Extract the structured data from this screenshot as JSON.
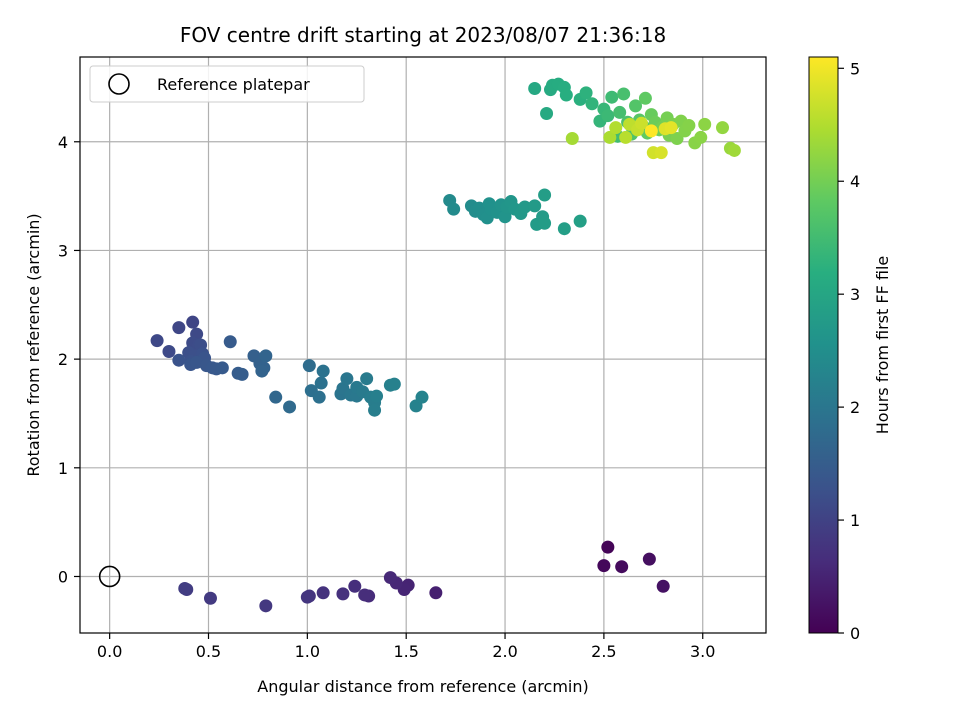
{
  "chart_data": {
    "type": "scatter",
    "title": "FOV centre drift starting at 2023/08/07 21:36:18",
    "xlabel": "Angular distance from reference (arcmin)",
    "ylabel": "Rotation from reference (arcmin)",
    "xlim": [
      -0.15,
      3.32
    ],
    "ylim": [
      -0.52,
      4.78
    ],
    "xticks": [
      "0.0",
      "0.5",
      "1.0",
      "1.5",
      "2.0",
      "2.5",
      "3.0"
    ],
    "yticks": [
      "0",
      "1",
      "2",
      "3",
      "4"
    ],
    "grid": true,
    "legend": {
      "placement": "top-left",
      "entries": [
        "Reference platepar"
      ]
    },
    "reference_point": {
      "x": 0.0,
      "y": 0.0
    },
    "colorbar": {
      "label": "Hours from first FF file",
      "range": [
        0,
        5.1
      ],
      "ticks": [
        "0",
        "1",
        "2",
        "3",
        "4",
        "5"
      ],
      "colormap": "viridis"
    },
    "points": [
      {
        "x": 2.52,
        "y": 0.27,
        "c": 0.05
      },
      {
        "x": 2.5,
        "y": 0.1,
        "c": 0.1
      },
      {
        "x": 2.59,
        "y": 0.09,
        "c": 0.15
      },
      {
        "x": 2.73,
        "y": 0.16,
        "c": 0.2
      },
      {
        "x": 2.8,
        "y": -0.09,
        "c": 0.25
      },
      {
        "x": 1.65,
        "y": -0.15,
        "c": 0.45
      },
      {
        "x": 1.51,
        "y": -0.08,
        "c": 0.5
      },
      {
        "x": 1.49,
        "y": -0.12,
        "c": 0.52
      },
      {
        "x": 1.45,
        "y": -0.06,
        "c": 0.55
      },
      {
        "x": 1.42,
        "y": -0.01,
        "c": 0.58
      },
      {
        "x": 1.31,
        "y": -0.18,
        "c": 0.62
      },
      {
        "x": 1.29,
        "y": -0.17,
        "c": 0.65
      },
      {
        "x": 1.24,
        "y": -0.09,
        "c": 0.68
      },
      {
        "x": 1.18,
        "y": -0.16,
        "c": 0.7
      },
      {
        "x": 1.08,
        "y": -0.15,
        "c": 0.73
      },
      {
        "x": 1.01,
        "y": -0.18,
        "c": 0.76
      },
      {
        "x": 1.0,
        "y": -0.19,
        "c": 0.78
      },
      {
        "x": 0.79,
        "y": -0.27,
        "c": 0.82
      },
      {
        "x": 0.51,
        "y": -0.2,
        "c": 0.86
      },
      {
        "x": 0.39,
        "y": -0.12,
        "c": 0.9
      },
      {
        "x": 0.38,
        "y": -0.11,
        "c": 0.92
      },
      {
        "x": 0.42,
        "y": 2.34,
        "c": 1.05
      },
      {
        "x": 0.35,
        "y": 2.29,
        "c": 1.08
      },
      {
        "x": 0.24,
        "y": 2.17,
        "c": 1.1
      },
      {
        "x": 0.44,
        "y": 2.23,
        "c": 1.12
      },
      {
        "x": 0.3,
        "y": 2.07,
        "c": 1.14
      },
      {
        "x": 0.42,
        "y": 2.15,
        "c": 1.16
      },
      {
        "x": 0.45,
        "y": 2.13,
        "c": 1.18
      },
      {
        "x": 0.46,
        "y": 2.13,
        "c": 1.2
      },
      {
        "x": 0.4,
        "y": 2.06,
        "c": 1.22
      },
      {
        "x": 0.43,
        "y": 2.03,
        "c": 1.24
      },
      {
        "x": 0.47,
        "y": 2.05,
        "c": 1.26
      },
      {
        "x": 0.41,
        "y": 1.98,
        "c": 1.28
      },
      {
        "x": 0.35,
        "y": 1.99,
        "c": 1.3
      },
      {
        "x": 0.48,
        "y": 2.01,
        "c": 1.32
      },
      {
        "x": 0.41,
        "y": 1.95,
        "c": 1.34
      },
      {
        "x": 0.44,
        "y": 1.97,
        "c": 1.36
      },
      {
        "x": 0.49,
        "y": 1.94,
        "c": 1.38
      },
      {
        "x": 0.52,
        "y": 1.92,
        "c": 1.4
      },
      {
        "x": 0.54,
        "y": 1.91,
        "c": 1.42
      },
      {
        "x": 0.57,
        "y": 1.92,
        "c": 1.44
      },
      {
        "x": 0.61,
        "y": 2.16,
        "c": 1.46
      },
      {
        "x": 0.65,
        "y": 1.87,
        "c": 1.48
      },
      {
        "x": 0.67,
        "y": 1.86,
        "c": 1.5
      },
      {
        "x": 0.73,
        "y": 2.03,
        "c": 1.55
      },
      {
        "x": 0.76,
        "y": 1.96,
        "c": 1.58
      },
      {
        "x": 0.78,
        "y": 1.92,
        "c": 1.6
      },
      {
        "x": 0.77,
        "y": 1.89,
        "c": 1.62
      },
      {
        "x": 0.79,
        "y": 2.03,
        "c": 1.64
      },
      {
        "x": 0.84,
        "y": 1.65,
        "c": 1.7
      },
      {
        "x": 0.91,
        "y": 1.56,
        "c": 1.75
      },
      {
        "x": 1.01,
        "y": 1.94,
        "c": 1.8
      },
      {
        "x": 1.02,
        "y": 1.71,
        "c": 1.85
      },
      {
        "x": 1.06,
        "y": 1.65,
        "c": 1.88
      },
      {
        "x": 1.07,
        "y": 1.78,
        "c": 1.9
      },
      {
        "x": 1.08,
        "y": 1.89,
        "c": 1.92
      },
      {
        "x": 1.17,
        "y": 1.68,
        "c": 1.95
      },
      {
        "x": 1.18,
        "y": 1.73,
        "c": 1.97
      },
      {
        "x": 1.2,
        "y": 1.82,
        "c": 2.0
      },
      {
        "x": 1.22,
        "y": 1.67,
        "c": 2.02
      },
      {
        "x": 1.25,
        "y": 1.66,
        "c": 2.04
      },
      {
        "x": 1.25,
        "y": 1.74,
        "c": 2.06
      },
      {
        "x": 1.28,
        "y": 1.7,
        "c": 2.08
      },
      {
        "x": 1.3,
        "y": 1.82,
        "c": 2.1
      },
      {
        "x": 1.32,
        "y": 1.65,
        "c": 2.12
      },
      {
        "x": 1.34,
        "y": 1.6,
        "c": 2.14
      },
      {
        "x": 1.34,
        "y": 1.53,
        "c": 2.16
      },
      {
        "x": 1.35,
        "y": 1.66,
        "c": 2.18
      },
      {
        "x": 1.42,
        "y": 1.76,
        "c": 2.2
      },
      {
        "x": 1.44,
        "y": 1.77,
        "c": 2.22
      },
      {
        "x": 1.55,
        "y": 1.57,
        "c": 2.24
      },
      {
        "x": 1.58,
        "y": 1.65,
        "c": 2.26
      },
      {
        "x": 1.72,
        "y": 3.46,
        "c": 2.4
      },
      {
        "x": 1.74,
        "y": 3.38,
        "c": 2.42
      },
      {
        "x": 1.83,
        "y": 3.41,
        "c": 2.44
      },
      {
        "x": 1.85,
        "y": 3.36,
        "c": 2.46
      },
      {
        "x": 1.87,
        "y": 3.39,
        "c": 2.48
      },
      {
        "x": 1.89,
        "y": 3.33,
        "c": 2.5
      },
      {
        "x": 1.91,
        "y": 3.3,
        "c": 2.52
      },
      {
        "x": 1.92,
        "y": 3.43,
        "c": 2.54
      },
      {
        "x": 1.93,
        "y": 3.38,
        "c": 2.56
      },
      {
        "x": 1.96,
        "y": 3.35,
        "c": 2.58
      },
      {
        "x": 1.98,
        "y": 3.42,
        "c": 2.6
      },
      {
        "x": 2.0,
        "y": 3.31,
        "c": 2.62
      },
      {
        "x": 2.01,
        "y": 3.4,
        "c": 2.64
      },
      {
        "x": 2.03,
        "y": 3.45,
        "c": 2.66
      },
      {
        "x": 2.05,
        "y": 3.38,
        "c": 2.68
      },
      {
        "x": 2.08,
        "y": 3.34,
        "c": 2.7
      },
      {
        "x": 2.1,
        "y": 3.4,
        "c": 2.72
      },
      {
        "x": 2.15,
        "y": 3.41,
        "c": 2.74
      },
      {
        "x": 2.16,
        "y": 3.24,
        "c": 2.76
      },
      {
        "x": 2.19,
        "y": 3.31,
        "c": 2.78
      },
      {
        "x": 2.2,
        "y": 3.25,
        "c": 2.8
      },
      {
        "x": 2.2,
        "y": 3.51,
        "c": 2.82
      },
      {
        "x": 2.3,
        "y": 3.2,
        "c": 2.84
      },
      {
        "x": 2.38,
        "y": 3.27,
        "c": 2.86
      },
      {
        "x": 2.15,
        "y": 4.49,
        "c": 3.05
      },
      {
        "x": 2.21,
        "y": 4.26,
        "c": 3.08
      },
      {
        "x": 2.23,
        "y": 4.48,
        "c": 3.1
      },
      {
        "x": 2.24,
        "y": 4.52,
        "c": 3.12
      },
      {
        "x": 2.27,
        "y": 4.53,
        "c": 3.14
      },
      {
        "x": 2.3,
        "y": 4.5,
        "c": 3.16
      },
      {
        "x": 2.31,
        "y": 4.43,
        "c": 3.18
      },
      {
        "x": 2.38,
        "y": 4.39,
        "c": 3.22
      },
      {
        "x": 2.41,
        "y": 4.45,
        "c": 3.26
      },
      {
        "x": 2.44,
        "y": 4.35,
        "c": 3.3
      },
      {
        "x": 2.48,
        "y": 4.19,
        "c": 3.34
      },
      {
        "x": 2.5,
        "y": 4.3,
        "c": 3.38
      },
      {
        "x": 2.52,
        "y": 4.24,
        "c": 3.42
      },
      {
        "x": 2.54,
        "y": 4.41,
        "c": 3.46
      },
      {
        "x": 2.57,
        "y": 4.05,
        "c": 3.5
      },
      {
        "x": 2.58,
        "y": 4.27,
        "c": 3.54
      },
      {
        "x": 2.6,
        "y": 4.44,
        "c": 3.58
      },
      {
        "x": 2.62,
        "y": 4.18,
        "c": 3.62
      },
      {
        "x": 2.64,
        "y": 4.07,
        "c": 3.66
      },
      {
        "x": 2.66,
        "y": 4.33,
        "c": 3.7
      },
      {
        "x": 2.68,
        "y": 4.2,
        "c": 3.74
      },
      {
        "x": 2.7,
        "y": 4.14,
        "c": 3.78
      },
      {
        "x": 2.71,
        "y": 4.4,
        "c": 3.82
      },
      {
        "x": 2.72,
        "y": 4.08,
        "c": 3.86
      },
      {
        "x": 2.74,
        "y": 4.25,
        "c": 3.9
      },
      {
        "x": 2.76,
        "y": 4.18,
        "c": 3.94
      },
      {
        "x": 2.78,
        "y": 4.11,
        "c": 3.98
      },
      {
        "x": 2.8,
        "y": 4.14,
        "c": 4.0
      },
      {
        "x": 2.82,
        "y": 4.22,
        "c": 4.02
      },
      {
        "x": 2.83,
        "y": 4.06,
        "c": 4.04
      },
      {
        "x": 2.85,
        "y": 4.16,
        "c": 4.06
      },
      {
        "x": 2.87,
        "y": 4.03,
        "c": 4.08
      },
      {
        "x": 2.89,
        "y": 4.19,
        "c": 4.1
      },
      {
        "x": 2.91,
        "y": 4.1,
        "c": 4.12
      },
      {
        "x": 2.93,
        "y": 4.15,
        "c": 4.14
      },
      {
        "x": 2.96,
        "y": 3.99,
        "c": 4.16
      },
      {
        "x": 2.99,
        "y": 4.04,
        "c": 4.18
      },
      {
        "x": 3.01,
        "y": 4.16,
        "c": 4.2
      },
      {
        "x": 3.1,
        "y": 4.13,
        "c": 4.25
      },
      {
        "x": 3.14,
        "y": 3.94,
        "c": 4.3
      },
      {
        "x": 3.16,
        "y": 3.92,
        "c": 4.35
      },
      {
        "x": 2.34,
        "y": 4.03,
        "c": 4.4
      },
      {
        "x": 2.53,
        "y": 4.04,
        "c": 4.45
      },
      {
        "x": 2.56,
        "y": 4.13,
        "c": 4.5
      },
      {
        "x": 2.61,
        "y": 4.04,
        "c": 4.55
      },
      {
        "x": 2.63,
        "y": 4.16,
        "c": 4.6
      },
      {
        "x": 2.67,
        "y": 4.11,
        "c": 4.65
      },
      {
        "x": 2.69,
        "y": 4.17,
        "c": 4.7
      },
      {
        "x": 2.75,
        "y": 3.9,
        "c": 4.75
      },
      {
        "x": 2.79,
        "y": 3.9,
        "c": 4.8
      },
      {
        "x": 2.81,
        "y": 4.12,
        "c": 4.85
      },
      {
        "x": 2.84,
        "y": 4.13,
        "c": 4.9
      },
      {
        "x": 2.74,
        "y": 4.1,
        "c": 5.1
      }
    ]
  }
}
